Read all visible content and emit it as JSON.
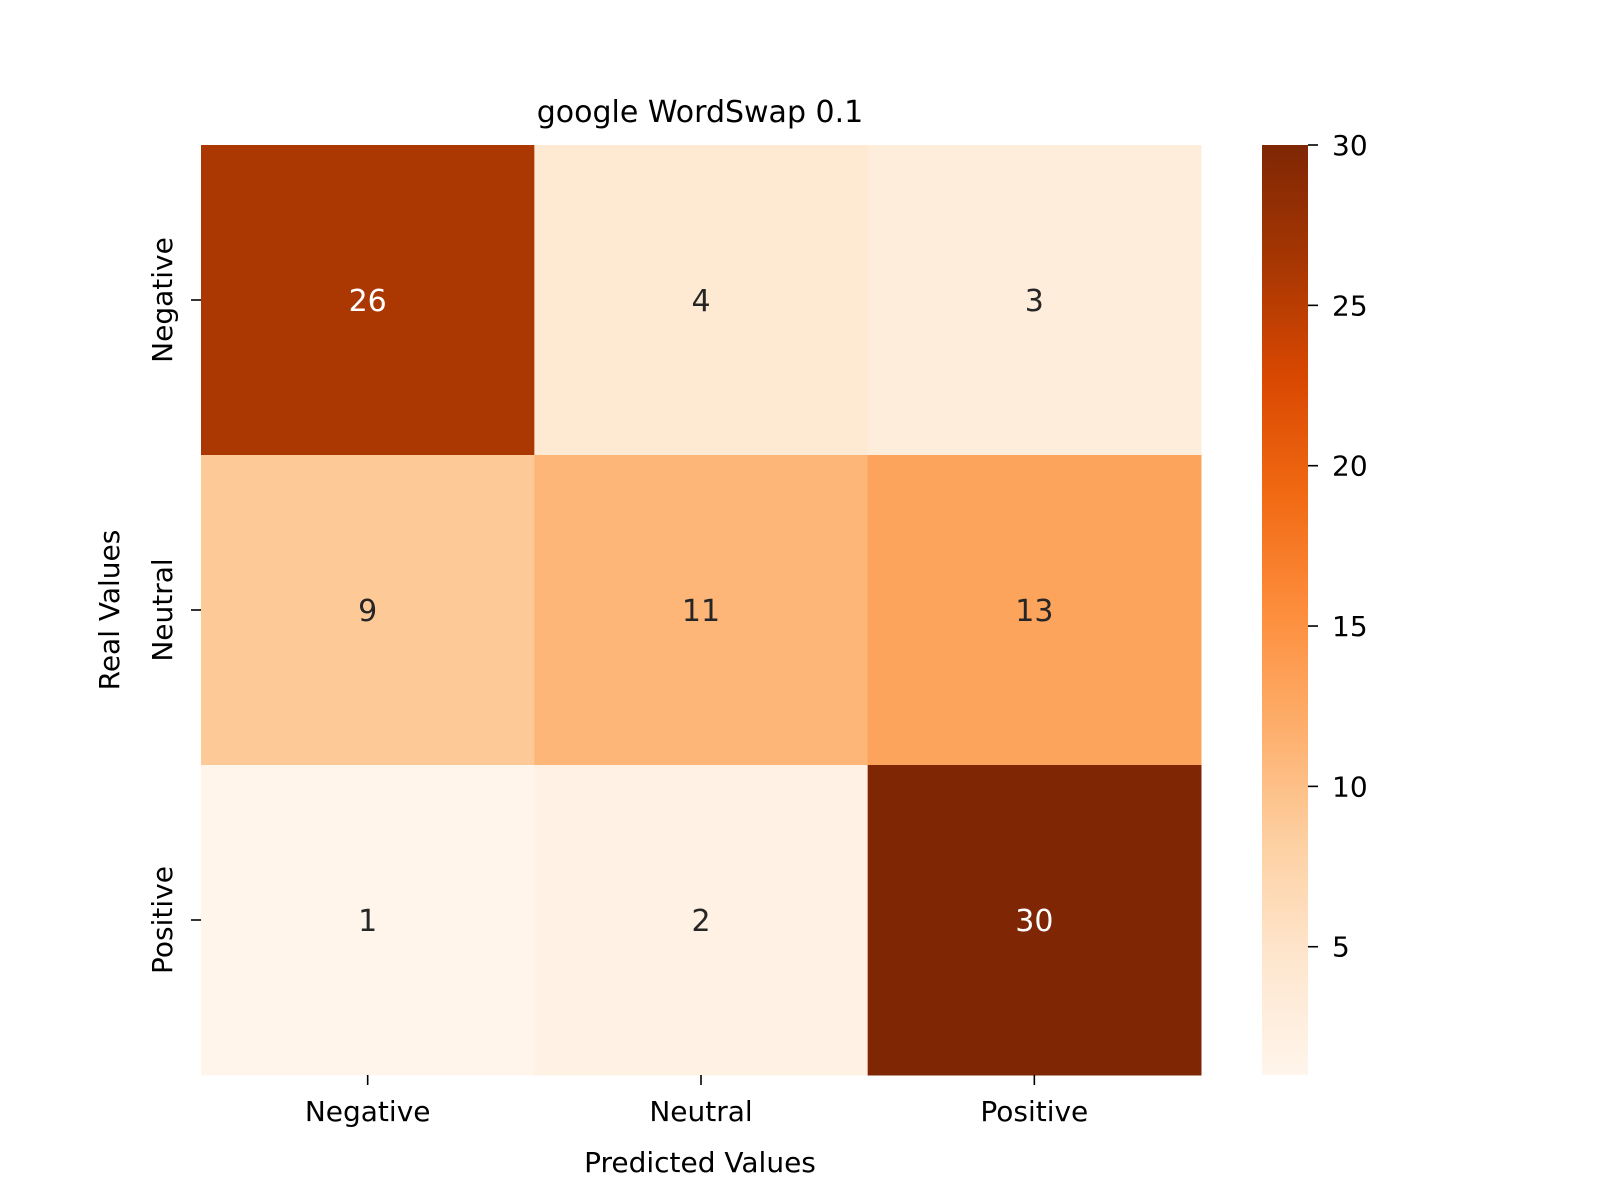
{
  "chart_data": {
    "type": "heatmap",
    "title": "google WordSwap 0.1",
    "xlabel": "Predicted Values",
    "ylabel": "Real Values",
    "x_categories": [
      "Negative",
      "Neutral",
      "Positive"
    ],
    "y_categories": [
      "Negative",
      "Neutral",
      "Positive"
    ],
    "values": [
      [
        26,
        4,
        3
      ],
      [
        9,
        11,
        13
      ],
      [
        1,
        2,
        30
      ]
    ],
    "colormap": "Oranges",
    "colorbar": {
      "min": 1,
      "max": 30,
      "ticks": [
        5,
        10,
        15,
        20,
        25,
        30
      ]
    },
    "annotation_dark_color": "#262626",
    "annotation_light_color": "#ffffff"
  }
}
